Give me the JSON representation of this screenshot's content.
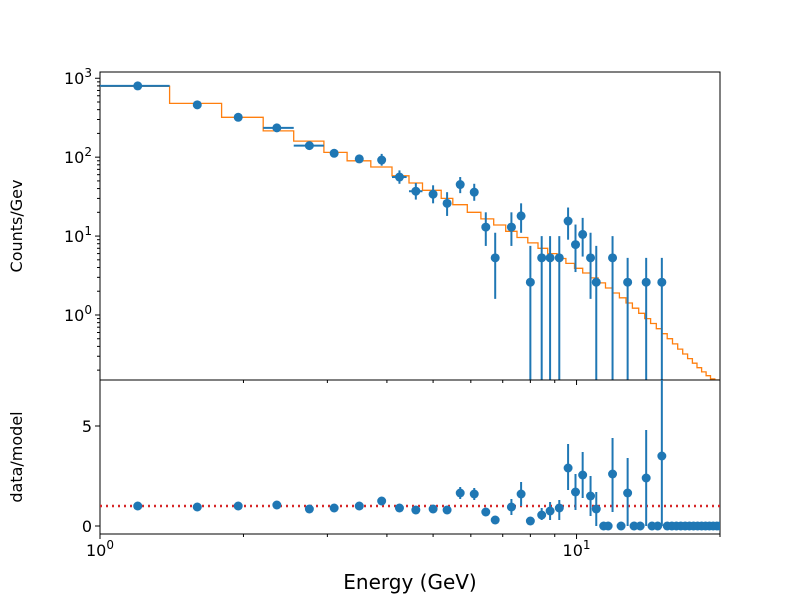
{
  "chart_data": [
    {
      "type": "scatter",
      "panel": "top",
      "title": "",
      "xlabel": "",
      "ylabel": "Counts/Gev",
      "xscale": "log",
      "yscale": "log",
      "xlim": [
        1.0,
        20.0
      ],
      "ylim": [
        0.15,
        1200
      ],
      "y_tick_values": [
        1,
        10,
        100,
        1000
      ],
      "y_tick_labels": [
        "10^0",
        "10^1",
        "10^2",
        "10^3"
      ],
      "colors": {
        "data": "#1f77b4",
        "model": "#ff7f0e"
      },
      "series": [
        {
          "kind": "data-with-errorbars",
          "points": [
            {
              "x": 1.2,
              "y": 800,
              "xerr": [
                1.0,
                1.4
              ]
            },
            {
              "x": 1.6,
              "y": 460
            },
            {
              "x": 1.95,
              "y": 320
            },
            {
              "x": 2.35,
              "y": 235,
              "xerr": [
                2.2,
                2.55
              ]
            },
            {
              "x": 2.75,
              "y": 140,
              "xerr": [
                2.55,
                2.95
              ]
            },
            {
              "x": 3.1,
              "y": 112
            },
            {
              "x": 3.5,
              "y": 95
            },
            {
              "x": 3.9,
              "y": 92,
              "yerr": [
                78,
                110
              ]
            },
            {
              "x": 4.25,
              "y": 56,
              "yerr": [
                46,
                68
              ],
              "xerr": [
                4.1,
                4.4
              ]
            },
            {
              "x": 4.6,
              "y": 37,
              "yerr": [
                29,
                47
              ],
              "xerr": [
                4.45,
                4.75
              ]
            },
            {
              "x": 5.0,
              "y": 34,
              "yerr": [
                26,
                44
              ]
            },
            {
              "x": 5.35,
              "y": 26,
              "yerr": [
                18,
                36
              ]
            },
            {
              "x": 5.7,
              "y": 45,
              "yerr": [
                35,
                56
              ]
            },
            {
              "x": 6.1,
              "y": 36,
              "yerr": [
                28,
                46
              ]
            },
            {
              "x": 6.45,
              "y": 13,
              "yerr": [
                7.5,
                20
              ]
            },
            {
              "x": 6.75,
              "y": 5.3,
              "yerr": [
                1.6,
                11
              ]
            },
            {
              "x": 7.3,
              "y": 13,
              "yerr": [
                7.5,
                20
              ]
            },
            {
              "x": 7.65,
              "y": 18,
              "yerr": [
                11,
                26
              ]
            },
            {
              "x": 8.0,
              "y": 2.6,
              "yerr": [
                0.15,
                7.5
              ]
            },
            {
              "x": 8.45,
              "y": 5.3,
              "yerr": [
                0.15,
                10
              ]
            },
            {
              "x": 8.8,
              "y": 5.3,
              "yerr": [
                0.15,
                10
              ]
            },
            {
              "x": 9.2,
              "y": 5.3,
              "yerr": [
                0.15,
                10
              ]
            },
            {
              "x": 9.6,
              "y": 15.5,
              "yerr": [
                9,
                23
              ]
            },
            {
              "x": 9.95,
              "y": 7.8,
              "yerr": [
                3.5,
                14
              ]
            },
            {
              "x": 10.3,
              "y": 10.5,
              "yerr": [
                5.5,
                17
              ]
            },
            {
              "x": 10.7,
              "y": 5.3,
              "yerr": [
                1.6,
                11
              ]
            },
            {
              "x": 11.0,
              "y": 2.6,
              "yerr": [
                0.15,
                7.5
              ]
            },
            {
              "x": 11.9,
              "y": 5.3,
              "yerr": [
                0.15,
                10
              ]
            },
            {
              "x": 12.8,
              "y": 2.6,
              "yerr": [
                0.15,
                5.3
              ]
            },
            {
              "x": 14.0,
              "y": 2.6,
              "yerr": [
                0.15,
                5.3
              ]
            },
            {
              "x": 15.1,
              "y": 2.6,
              "yerr": [
                0.15,
                5.3
              ]
            }
          ]
        },
        {
          "kind": "model-step",
          "edges": [
            1.0,
            1.4,
            1.8,
            2.2,
            2.55,
            2.95,
            3.3,
            3.7,
            4.1,
            4.45,
            4.75,
            5.2,
            5.5,
            5.9,
            6.3,
            6.7,
            7.1,
            7.5,
            7.9,
            8.3,
            8.7,
            9.1,
            9.5,
            9.9,
            10.3,
            10.7,
            11.1,
            11.5,
            11.9,
            12.3,
            12.7,
            13.1,
            13.5,
            13.9,
            14.3,
            14.7,
            15.1,
            15.5,
            15.9,
            16.3,
            16.7,
            17.1,
            17.5,
            17.9,
            18.3,
            18.7,
            19.1,
            19.5,
            20.0
          ],
          "values": [
            790,
            480,
            320,
            215,
            160,
            115,
            90,
            75,
            58,
            47,
            38,
            30,
            25,
            20,
            16.5,
            13.8,
            11.5,
            9.6,
            8.2,
            7.0,
            6.0,
            5.2,
            4.5,
            3.9,
            3.4,
            2.95,
            2.55,
            2.2,
            1.9,
            1.65,
            1.42,
            1.22,
            1.05,
            0.9,
            0.78,
            0.67,
            0.58,
            0.5,
            0.43,
            0.37,
            0.32,
            0.28,
            0.245,
            0.215,
            0.19,
            0.17,
            0.155,
            0.14
          ]
        }
      ]
    },
    {
      "type": "scatter",
      "panel": "bottom",
      "title": "",
      "xlabel": "Energy (GeV)",
      "ylabel": "data/model",
      "xscale": "log",
      "yscale": "linear",
      "xlim": [
        1.0,
        20.0
      ],
      "ylim": [
        -0.4,
        7.3
      ],
      "x_tick_values": [
        1,
        10
      ],
      "x_tick_labels": [
        "10^0",
        "10^1"
      ],
      "y_tick_values": [
        0,
        5
      ],
      "y_tick_labels": [
        "0",
        "5"
      ],
      "reference_line": {
        "y": 1.0,
        "style": "dotted",
        "color": "#d62728"
      },
      "colors": {
        "data": "#1f77b4"
      },
      "series": [
        {
          "kind": "ratio-with-errorbars",
          "points": [
            {
              "x": 1.2,
              "y": 1.0
            },
            {
              "x": 1.6,
              "y": 0.95
            },
            {
              "x": 1.95,
              "y": 1.0
            },
            {
              "x": 2.35,
              "y": 1.05
            },
            {
              "x": 2.75,
              "y": 0.85
            },
            {
              "x": 3.1,
              "y": 0.9
            },
            {
              "x": 3.5,
              "y": 1.0
            },
            {
              "x": 3.9,
              "y": 1.25,
              "yerr": [
                1.1,
                1.4
              ]
            },
            {
              "x": 4.25,
              "y": 0.9
            },
            {
              "x": 4.6,
              "y": 0.8
            },
            {
              "x": 5.0,
              "y": 0.85
            },
            {
              "x": 5.35,
              "y": 0.8
            },
            {
              "x": 5.7,
              "y": 1.65,
              "yerr": [
                1.35,
                1.95
              ]
            },
            {
              "x": 6.1,
              "y": 1.6,
              "yerr": [
                1.3,
                1.9
              ]
            },
            {
              "x": 6.45,
              "y": 0.7
            },
            {
              "x": 6.75,
              "y": 0.3
            },
            {
              "x": 7.3,
              "y": 0.95,
              "yerr": [
                0.55,
                1.35
              ]
            },
            {
              "x": 7.65,
              "y": 1.6,
              "yerr": [
                1.0,
                2.2
              ]
            },
            {
              "x": 8.0,
              "y": 0.25
            },
            {
              "x": 8.45,
              "y": 0.55,
              "yerr": [
                0.3,
                0.9
              ]
            },
            {
              "x": 8.8,
              "y": 0.75,
              "yerr": [
                0.3,
                1.2
              ]
            },
            {
              "x": 9.2,
              "y": 0.9,
              "yerr": [
                0.3,
                1.3
              ]
            },
            {
              "x": 9.6,
              "y": 2.9,
              "yerr": [
                1.8,
                4.1
              ]
            },
            {
              "x": 9.95,
              "y": 1.7,
              "yerr": [
                0.8,
                2.6
              ]
            },
            {
              "x": 10.3,
              "y": 2.55,
              "yerr": [
                1.4,
                3.7
              ]
            },
            {
              "x": 10.7,
              "y": 1.5,
              "yerr": [
                0.5,
                2.5
              ]
            },
            {
              "x": 11.0,
              "y": 0.85,
              "yerr": [
                0.0,
                1.7
              ]
            },
            {
              "x": 11.4,
              "y": 0.0
            },
            {
              "x": 11.65,
              "y": 0.0
            },
            {
              "x": 11.9,
              "y": 2.6,
              "yerr": [
                0.7,
                4.4
              ]
            },
            {
              "x": 12.4,
              "y": 0.0
            },
            {
              "x": 12.8,
              "y": 1.65,
              "yerr": [
                0.0,
                3.4
              ]
            },
            {
              "x": 13.2,
              "y": 0.0
            },
            {
              "x": 13.6,
              "y": 0.0
            },
            {
              "x": 14.0,
              "y": 2.4,
              "yerr": [
                0.0,
                4.8
              ]
            },
            {
              "x": 14.4,
              "y": 0.0
            },
            {
              "x": 14.8,
              "y": 0.0
            },
            {
              "x": 15.1,
              "y": 3.5,
              "yerr": [
                0.0,
                7.3
              ]
            },
            {
              "x": 15.5,
              "y": 0.0
            },
            {
              "x": 15.85,
              "y": 0.0
            },
            {
              "x": 16.2,
              "y": 0.0
            },
            {
              "x": 16.55,
              "y": 0.0
            },
            {
              "x": 16.9,
              "y": 0.0
            },
            {
              "x": 17.25,
              "y": 0.0
            },
            {
              "x": 17.6,
              "y": 0.0
            },
            {
              "x": 17.95,
              "y": 0.0
            },
            {
              "x": 18.3,
              "y": 0.0
            },
            {
              "x": 18.65,
              "y": 0.0
            },
            {
              "x": 19.0,
              "y": 0.0
            },
            {
              "x": 19.35,
              "y": 0.0
            },
            {
              "x": 19.7,
              "y": 0.0
            },
            {
              "x": 20.0,
              "y": 0.0
            }
          ]
        }
      ]
    }
  ]
}
